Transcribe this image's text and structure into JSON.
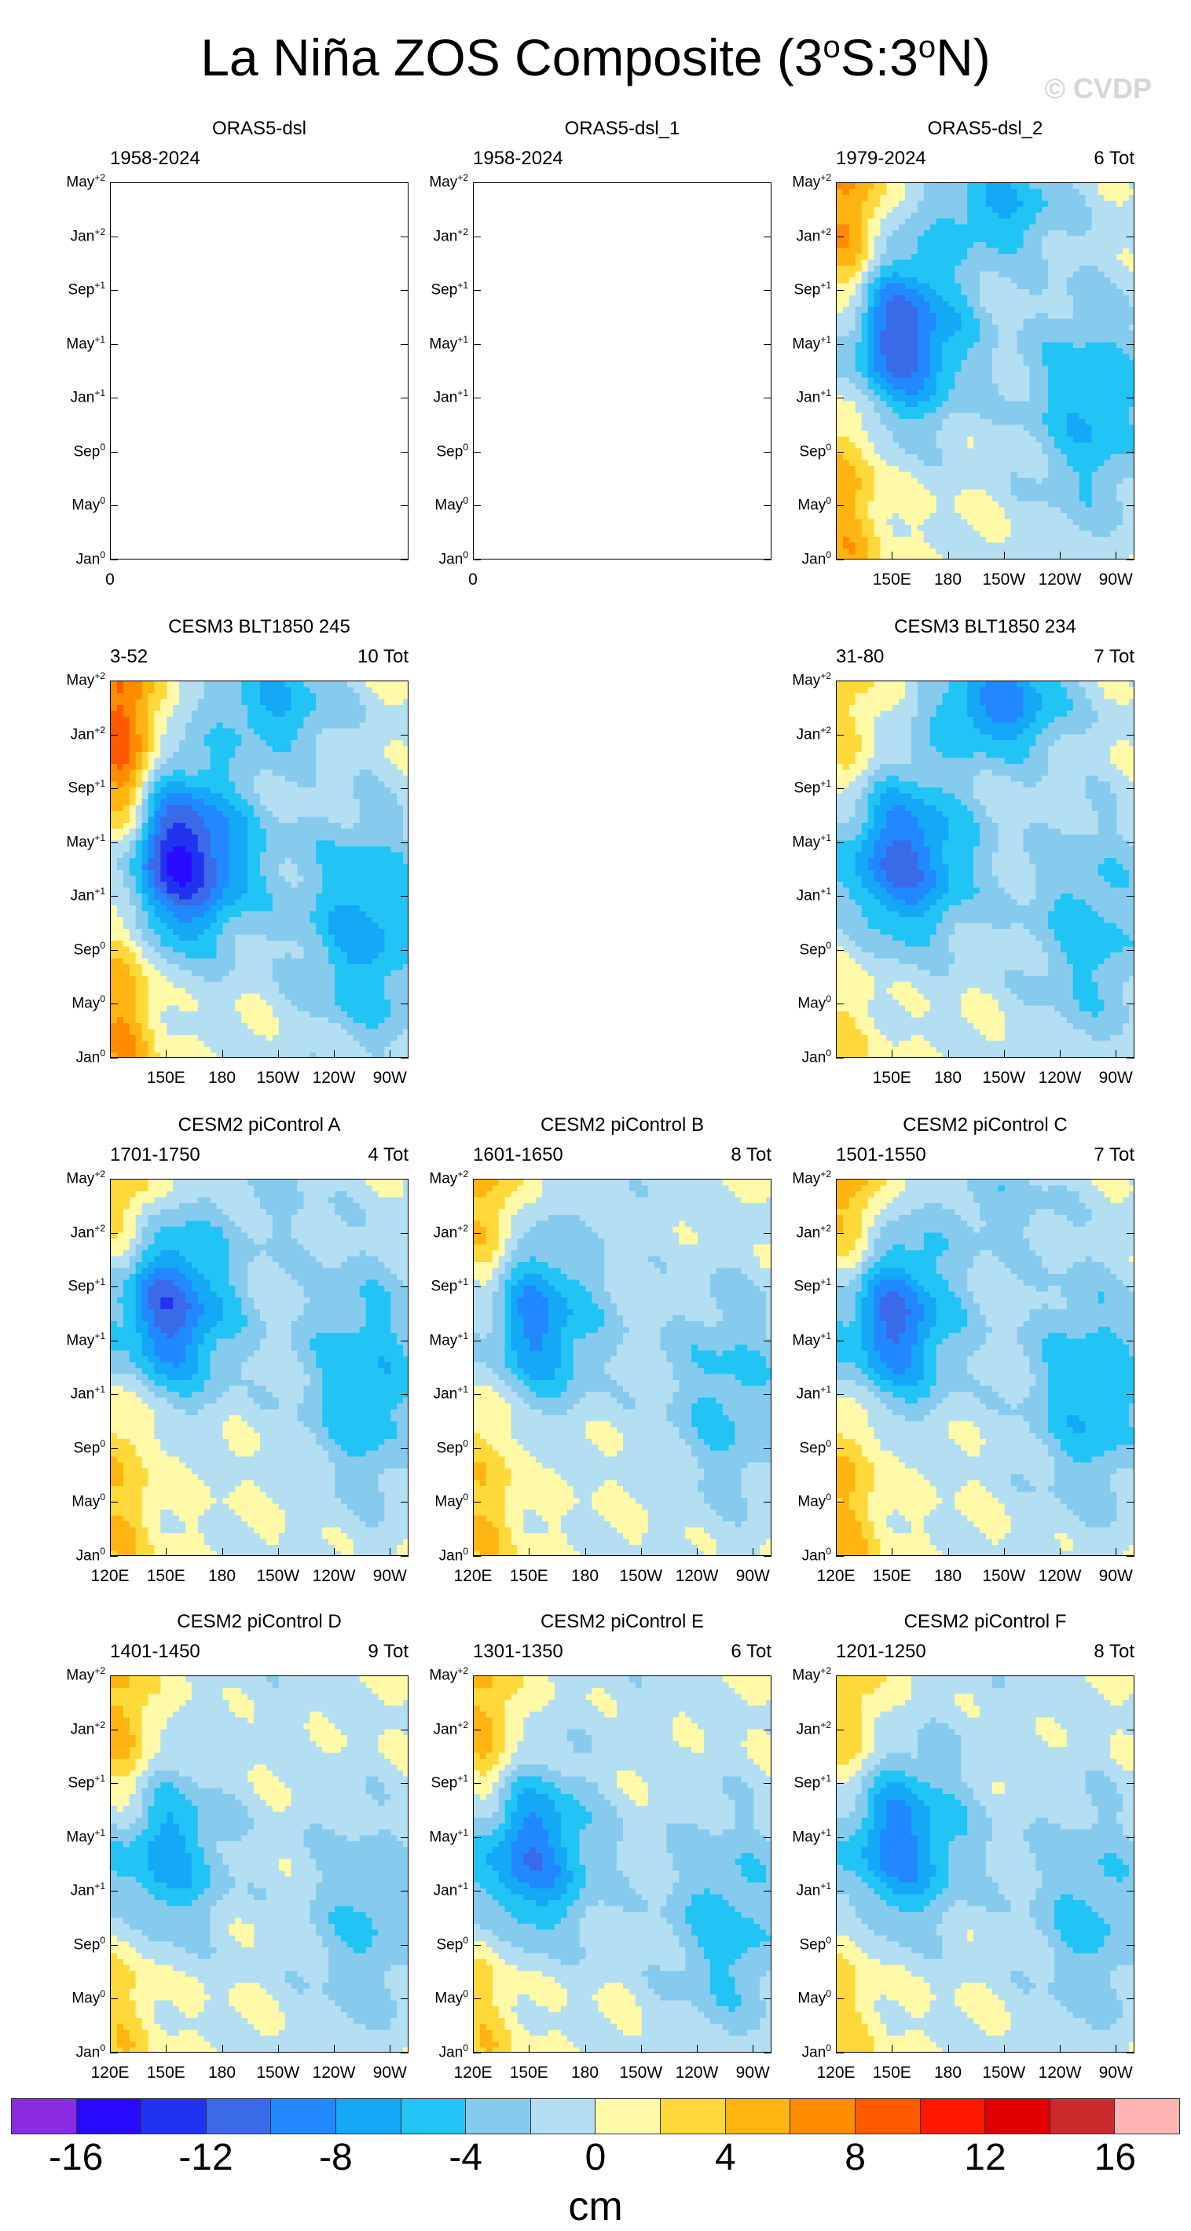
{
  "title": "La Niña ZOS Composite (3°S:3°N)",
  "watermark": "© CVDP",
  "y_ticks": [
    {
      "base": "May",
      "sup": "+2"
    },
    {
      "base": "Jan",
      "sup": "+2"
    },
    {
      "base": "Sep",
      "sup": "+1"
    },
    {
      "base": "May",
      "sup": "+1"
    },
    {
      "base": "Jan",
      "sup": "+1"
    },
    {
      "base": "Sep",
      "sup": "0"
    },
    {
      "base": "May",
      "sup": "0"
    },
    {
      "base": "Jan",
      "sup": "0"
    }
  ],
  "x_ticks_full": [
    "120E",
    "150E",
    "180",
    "150W",
    "120W",
    "90W"
  ],
  "x_ticks_short": [
    "150E",
    "180",
    "150W",
    "120W",
    "90W"
  ],
  "x_tick_empty": "0",
  "colorbar": {
    "colors": [
      "#8a2be2",
      "#2a0aff",
      "#2233f0",
      "#3a6ae8",
      "#2288ff",
      "#14a8f6",
      "#22c4f5",
      "#86cbee",
      "#b4def2",
      "#fff9a8",
      "#ffd93a",
      "#ffb411",
      "#ff8c00",
      "#ff5a00",
      "#ff1800",
      "#e00000",
      "#cc2a2a",
      "#ffb4b4"
    ],
    "labels": [
      "-16",
      "-12",
      "-8",
      "-4",
      "0",
      "4",
      "8",
      "12",
      "16"
    ],
    "units": "cm"
  },
  "chart_data": {
    "type": "heatmap",
    "title": "La Niña ZOS Composite (3°S:3°N)",
    "units": "cm",
    "color_levels": [
      -16,
      -14,
      -12,
      -10,
      -8,
      -6,
      -4,
      -2,
      0,
      2,
      4,
      6,
      8,
      10,
      12,
      14,
      16
    ],
    "x_axis": "longitude 120E-80W",
    "y_axis": "composite month Jan0 to May+2",
    "panels": [
      {
        "id": "p1",
        "title": "ORAS5-dsl",
        "years": "1958-2024",
        "count": "",
        "empty": true,
        "min_value": null,
        "max_value": null,
        "low_center_lon": null,
        "low_center_month": null
      },
      {
        "id": "p2",
        "title": "ORAS5-dsl_1",
        "years": "1958-2024",
        "count": "",
        "empty": true,
        "min_value": null,
        "max_value": null,
        "low_center_lon": null,
        "low_center_month": null
      },
      {
        "id": "p3",
        "title": "ORAS5-dsl_2",
        "years": "1979-2024",
        "count": "6 Tot",
        "empty": false,
        "min_value": -13,
        "max_value": 9,
        "low_center_lon": 145,
        "low_center_month": 9.5,
        "second_low_value": -6,
        "warm_month": 12
      },
      {
        "id": "p4",
        "title": "CESM3 BLT1850 245",
        "years": "3-52",
        "count": "10 Tot",
        "empty": false,
        "min_value": -15,
        "max_value": 11,
        "low_center_lon": 152,
        "low_center_month": 8.5,
        "second_low_value": -6,
        "warm_month": 12
      },
      {
        "id": "p5",
        "title": "CESM3 BLT1850 234",
        "years": "31-80",
        "count": "7 Tot",
        "empty": false,
        "min_value": -11,
        "max_value": 4,
        "low_center_lon": 150,
        "low_center_month": 8.5,
        "second_low_value": -9,
        "warm_month": 12
      },
      {
        "id": "p6",
        "title": "CESM2 piControl A",
        "years": "1701-1750",
        "count": "4 Tot",
        "empty": false,
        "min_value": -13,
        "max_value": 7,
        "low_center_lon": 140,
        "low_center_month": 10.5,
        "second_low_value": -2,
        "warm_month": 12
      },
      {
        "id": "p7",
        "title": "CESM2 piControl B",
        "years": "1601-1650",
        "count": "8 Tot",
        "empty": false,
        "min_value": -10,
        "max_value": 7,
        "low_center_lon": 142,
        "low_center_month": 10,
        "second_low_value": -1,
        "warm_month": 12
      },
      {
        "id": "p8",
        "title": "CESM2 piControl C",
        "years": "1501-1550",
        "count": "7 Tot",
        "empty": false,
        "min_value": -13,
        "max_value": 8,
        "low_center_lon": 137,
        "low_center_month": 10,
        "second_low_value": -3,
        "warm_month": 12
      },
      {
        "id": "p9",
        "title": "CESM2 piControl D",
        "years": "1401-1450",
        "count": "9 Tot",
        "empty": false,
        "min_value": -9,
        "max_value": 6,
        "low_center_lon": 135,
        "low_center_month": 8.5,
        "second_low_value": -1,
        "warm_month": 12
      },
      {
        "id": "p10",
        "title": "CESM2 piControl E",
        "years": "1301-1350",
        "count": "6 Tot",
        "empty": false,
        "min_value": -11,
        "max_value": 6,
        "low_center_lon": 140,
        "low_center_month": 8.5,
        "second_low_value": -1,
        "warm_month": 12
      },
      {
        "id": "p11",
        "title": "CESM2 piControl F",
        "years": "1201-1250",
        "count": "8 Tot",
        "empty": false,
        "min_value": -10,
        "max_value": 5,
        "low_center_lon": 145,
        "low_center_month": 9,
        "second_low_value": -1,
        "warm_month": 12
      }
    ]
  }
}
